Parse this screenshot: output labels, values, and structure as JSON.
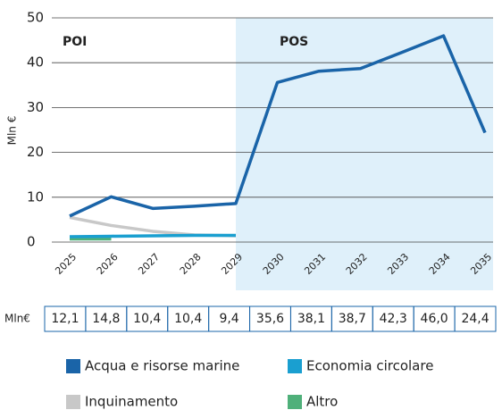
{
  "chart_data": {
    "type": "line",
    "ylabel": "Mln €",
    "categories": [
      "2025",
      "2026",
      "2027",
      "2028",
      "2029",
      "2030",
      "2031",
      "2032",
      "2033",
      "2034",
      "2035"
    ],
    "ylim": [
      0,
      50
    ],
    "yticks": [
      0,
      10,
      20,
      30,
      40,
      50
    ],
    "grid": true,
    "shaded_from": "2029",
    "shade_color": "#dff0fa",
    "annotations": [
      "POI",
      "POS"
    ],
    "series": [
      {
        "name": "Acqua e risorse marine",
        "color": "#1a64a8",
        "values": [
          5.8,
          10.1,
          7.5,
          8.0,
          8.6,
          35.6,
          38.1,
          38.7,
          42.3,
          46.0,
          24.4
        ]
      },
      {
        "name": "Economia circolare",
        "color": "#1a9fd0",
        "values": [
          1.2,
          1.3,
          1.4,
          1.5,
          1.5,
          null,
          null,
          null,
          null,
          null,
          null
        ]
      },
      {
        "name": "Inquinamento",
        "color": "#c8c8c8",
        "values": [
          5.5,
          3.7,
          2.4,
          1.6,
          1.4,
          null,
          null,
          null,
          null,
          null,
          null
        ]
      },
      {
        "name": "Altro",
        "color": "#4fb07a",
        "values": [
          0.7,
          0.7,
          null,
          null,
          null,
          null,
          null,
          null,
          null,
          null,
          null
        ]
      }
    ],
    "table": {
      "label": "Mln€",
      "values": [
        12.1,
        14.8,
        10.4,
        10.4,
        9.4,
        35.6,
        38.1,
        38.7,
        42.3,
        46.0,
        24.4
      ],
      "value_labels": [
        "12,1",
        "14,8",
        "10,4",
        "10,4",
        "9,4",
        "35,6",
        "38,1",
        "38,7",
        "42,3",
        "46,0",
        "24,4"
      ]
    }
  }
}
